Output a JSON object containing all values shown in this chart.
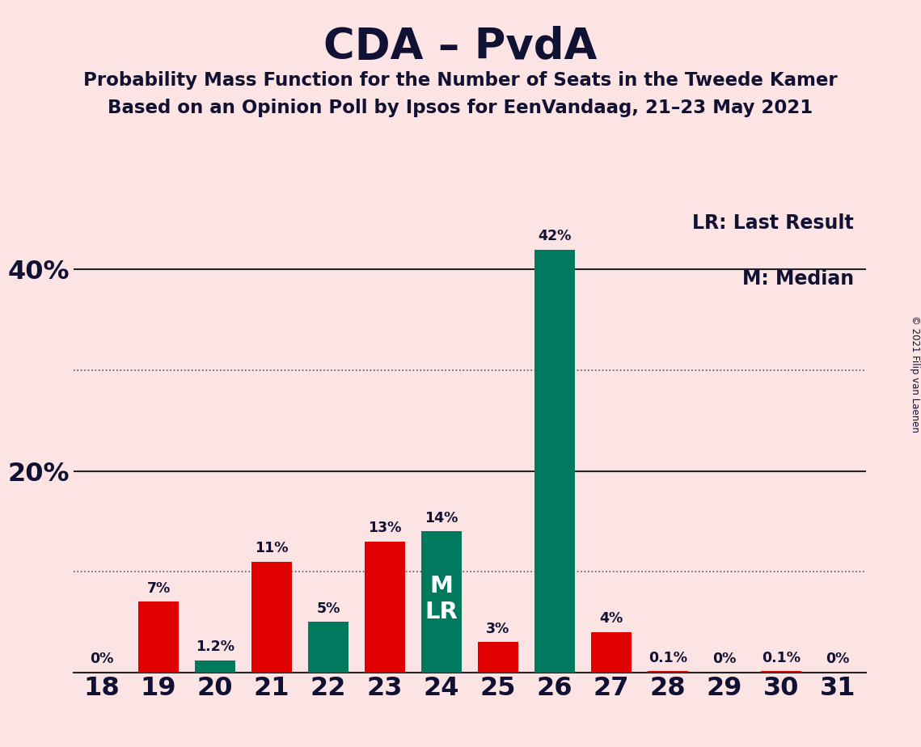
{
  "title": "CDA – PvdA",
  "subtitle1": "Probability Mass Function for the Number of Seats in the Tweede Kamer",
  "subtitle2": "Based on an Opinion Poll by Ipsos for EenVandaag, 21–23 May 2021",
  "copyright": "© 2021 Filip van Laenen",
  "seats": [
    18,
    19,
    20,
    21,
    22,
    23,
    24,
    25,
    26,
    27,
    28,
    29,
    30,
    31
  ],
  "values": [
    0.0,
    7.0,
    1.2,
    11.0,
    5.0,
    13.0,
    14.0,
    3.0,
    42.0,
    4.0,
    0.1,
    0.0,
    0.1,
    0.0
  ],
  "labels": [
    "0%",
    "7%",
    "1.2%",
    "11%",
    "5%",
    "13%",
    "14%",
    "3%",
    "42%",
    "4%",
    "0.1%",
    "0%",
    "0.1%",
    "0%"
  ],
  "colors": [
    "#e00000",
    "#e00000",
    "#007a5e",
    "#e00000",
    "#007a5e",
    "#e00000",
    "#007a5e",
    "#e00000",
    "#007a5e",
    "#e00000",
    "#e00000",
    "#e00000",
    "#e00000",
    "#e00000"
  ],
  "median_seat": 24,
  "background_color": "#fce4e4",
  "text_color": "#111133",
  "ylim": [
    0,
    46
  ],
  "legend_lr": "LR: Last Result",
  "legend_m": "M: Median"
}
